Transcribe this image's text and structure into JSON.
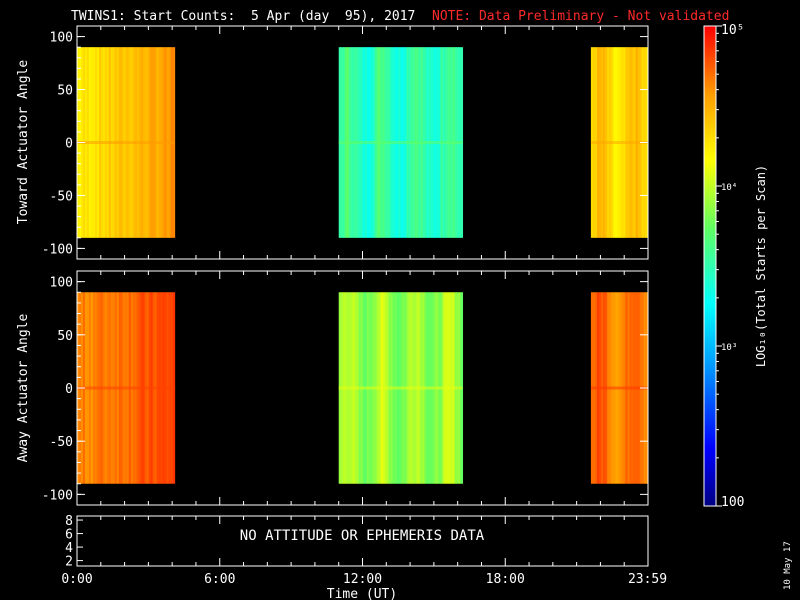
{
  "title": {
    "main": "TWINS1: Start Counts:  5 Apr (day  95), 2017",
    "note": "NOTE: Data Preliminary - Not validated",
    "note_color": "#ff2a2a"
  },
  "stamp": "10 May 17",
  "chart_data": [
    {
      "type": "heatmap",
      "panel": "top",
      "ylabel": "Toward Actuator Angle",
      "yticks": [
        100,
        50,
        0,
        -50,
        -100
      ],
      "ylim": [
        -110,
        110
      ],
      "xlim": [
        0,
        24
      ],
      "data_y_range": [
        -90,
        90
      ],
      "segments": [
        {
          "start_hr": 0.0,
          "end_hr": 4.1,
          "level": "yellow-green to orange"
        },
        {
          "start_hr": 11.0,
          "end_hr": 16.2,
          "level": "cyan to green-yellow"
        },
        {
          "start_hr": 21.6,
          "end_hr": 23.99,
          "level": "yellow to orange"
        }
      ]
    },
    {
      "type": "heatmap",
      "panel": "middle",
      "ylabel": "Away Actuator Angle",
      "yticks": [
        100,
        50,
        0,
        -50,
        -100
      ],
      "ylim": [
        -110,
        110
      ],
      "xlim": [
        0,
        24
      ],
      "data_y_range": [
        -90,
        90
      ],
      "segments": [
        {
          "start_hr": 0.0,
          "end_hr": 4.1,
          "level": "orange-red"
        },
        {
          "start_hr": 11.0,
          "end_hr": 16.2,
          "level": "green to yellow"
        },
        {
          "start_hr": 21.6,
          "end_hr": 23.99,
          "level": "orange-red"
        }
      ]
    },
    {
      "type": "line",
      "panel": "bottom",
      "yticks": [
        8,
        6,
        4,
        2
      ],
      "message": "NO ATTITUDE OR EPHEMERIS DATA",
      "xticks": [
        "0:00",
        "6:00",
        "12:00",
        "18:00",
        "23:59"
      ],
      "xtick_hours": [
        0,
        6,
        12,
        18,
        23.98
      ],
      "xlabel": "Time (UT)"
    }
  ],
  "colorbar": {
    "label": "LOG₁₀(Total Starts per Scan)",
    "ticks": [
      {
        "label": "10⁵",
        "value": 100000
      },
      {
        "label": "10⁴",
        "value": 10000
      },
      {
        "label": "10³",
        "value": 1000
      },
      {
        "label": "100",
        "value": 100
      }
    ],
    "range": [
      100,
      100000
    ],
    "colormap": "rainbow (dark blue to red)"
  }
}
